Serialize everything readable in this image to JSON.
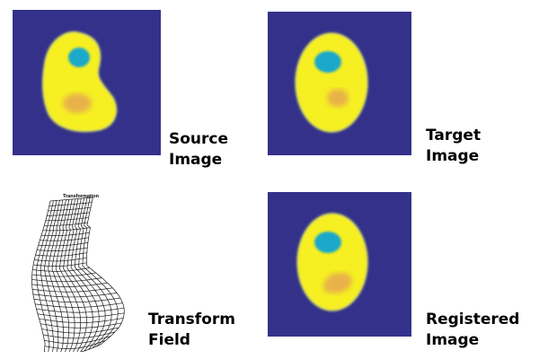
{
  "colors": {
    "background": "#34318a",
    "organ": "#f6ef22",
    "organ_edge": "#c9d96a",
    "cyst": "#1aa8c9",
    "lesion": "#e8b24a",
    "grid_line": "#1a1a1a"
  },
  "source": {
    "label_line1": "Source",
    "label_line2": "Image"
  },
  "target": {
    "label_line1": "Target",
    "label_line2": "Image"
  },
  "transform": {
    "title": "Transformation",
    "label_line1": "Transform",
    "label_line2": "Field"
  },
  "registered": {
    "label_line1": "Registered",
    "label_line2": "Image"
  }
}
